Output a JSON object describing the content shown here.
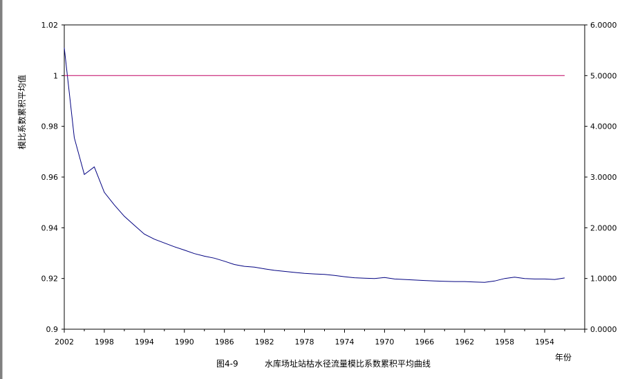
{
  "chart_data": {
    "type": "line",
    "ylabel": "模比系数累积平均值",
    "xlabel": "年份",
    "caption": {
      "figure_no": "图4-9",
      "title": "水库场址站枯水径流量模比系数累积平均曲线"
    },
    "x_tick_labels": [
      "2002",
      "1998",
      "1994",
      "1990",
      "1986",
      "1982",
      "1978",
      "1974",
      "1970",
      "1966",
      "1962",
      "1958",
      "1954"
    ],
    "ylim_left": [
      0.9,
      1.02
    ],
    "left_ticks": [
      "0.9",
      "0.92",
      "0.94",
      "0.96",
      "0.98",
      "1",
      "1.02"
    ],
    "ylim_right": [
      0,
      6
    ],
    "right_ticks": [
      "0.0000",
      "1.0000",
      "2.0000",
      "3.0000",
      "4.0000",
      "5.0000",
      "6.0000"
    ],
    "x_range": [
      2002,
      1950
    ],
    "series": [
      {
        "color": "#000080",
        "x": [
          2002,
          2001,
          2000,
          1999,
          1998,
          1997,
          1996,
          1995,
          1994,
          1993,
          1992,
          1991,
          1990,
          1989,
          1988,
          1987,
          1986,
          1985,
          1984,
          1983,
          1982,
          1981,
          1980,
          1979,
          1978,
          1977,
          1976,
          1975,
          1974,
          1973,
          1972,
          1971,
          1970,
          1969,
          1968,
          1967,
          1966,
          1965,
          1964,
          1963,
          1962,
          1961,
          1960,
          1959,
          1958,
          1957,
          1956,
          1955,
          1954,
          1953,
          1952
        ],
        "y": [
          1.011,
          0.9755,
          0.961,
          0.964,
          0.954,
          0.949,
          0.9445,
          0.941,
          0.9375,
          0.9355,
          0.934,
          0.9325,
          0.9312,
          0.9298,
          0.9288,
          0.928,
          0.9268,
          0.9255,
          0.9248,
          0.9245,
          0.9238,
          0.9232,
          0.9228,
          0.9224,
          0.922,
          0.9218,
          0.9216,
          0.9212,
          0.9207,
          0.9203,
          0.9201,
          0.92,
          0.9204,
          0.9198,
          0.9196,
          0.9194,
          0.9192,
          0.919,
          0.9189,
          0.9188,
          0.9188,
          0.9186,
          0.9185,
          0.919,
          0.92,
          0.9205,
          0.92,
          0.9198,
          0.9198,
          0.9196,
          0.9202
        ]
      },
      {
        "color": "#c00060",
        "x": [
          2002,
          1952
        ],
        "y": [
          1.0,
          1.0
        ]
      }
    ]
  }
}
